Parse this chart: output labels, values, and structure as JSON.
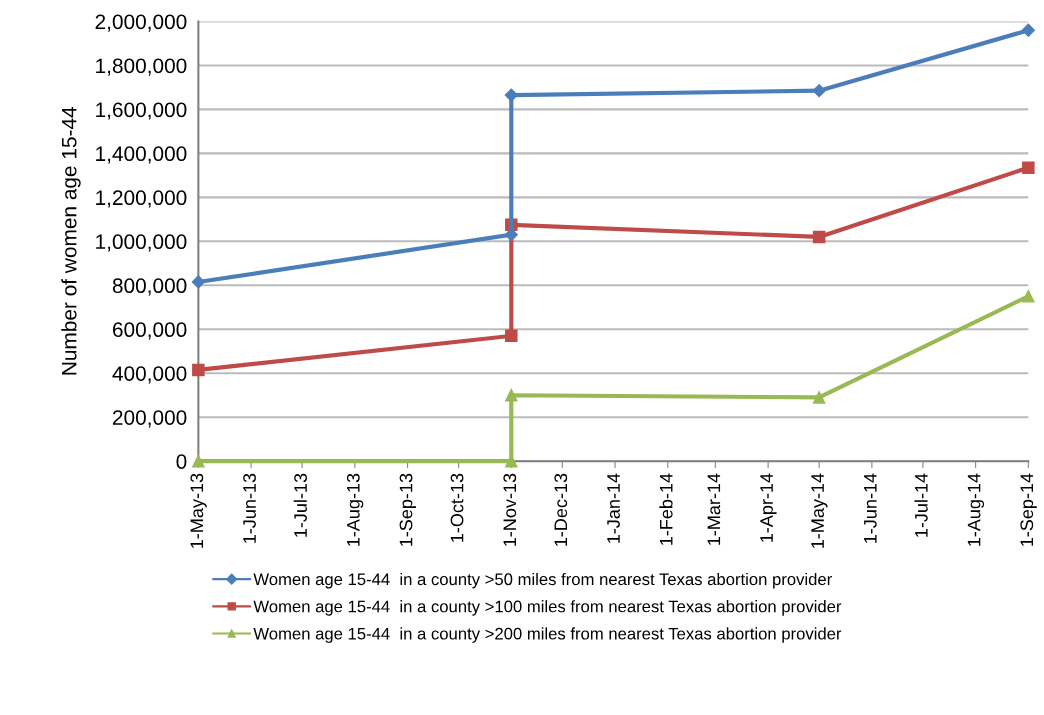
{
  "chart_data": {
    "type": "line",
    "ylabel": "Number of women age 15-44",
    "x": [
      "2013-05-01",
      "2013-11-01",
      "2013-11-01",
      "2014-05-01",
      "2014-09-01"
    ],
    "series": [
      {
        "name": "Women age 15-44  in a county >50 miles from nearest Texas abortion provider",
        "color": "#4a7ebb",
        "marker": "diamond",
        "values": [
          815000,
          1030000,
          1665000,
          1685000,
          1960000
        ]
      },
      {
        "name": "Women age 15-44  in a county >100 miles from nearest Texas abortion provider",
        "color": "#be4b48",
        "marker": "square",
        "values": [
          415000,
          570000,
          1075000,
          1020000,
          1335000
        ]
      },
      {
        "name": "Women age 15-44  in a county >200 miles from nearest Texas abortion provider",
        "color": "#98b954",
        "marker": "triangle",
        "values": [
          0,
          0,
          300000,
          290000,
          750000
        ]
      }
    ],
    "xlim": [
      "2013-05-01",
      "2014-09-01"
    ],
    "xticks": [
      {
        "value": "2013-05-01",
        "label": "1-May-13"
      },
      {
        "value": "2013-06-01",
        "label": "1-Jun-13"
      },
      {
        "value": "2013-07-01",
        "label": "1-Jul-13"
      },
      {
        "value": "2013-08-01",
        "label": "1-Aug-13"
      },
      {
        "value": "2013-09-01",
        "label": "1-Sep-13"
      },
      {
        "value": "2013-10-01",
        "label": "1-Oct-13"
      },
      {
        "value": "2013-11-01",
        "label": "1-Nov-13"
      },
      {
        "value": "2013-12-01",
        "label": "1-Dec-13"
      },
      {
        "value": "2014-01-01",
        "label": "1-Jan-14"
      },
      {
        "value": "2014-02-01",
        "label": "1-Feb-14"
      },
      {
        "value": "2014-03-01",
        "label": "1-Mar-14"
      },
      {
        "value": "2014-04-01",
        "label": "1-Apr-14"
      },
      {
        "value": "2014-05-01",
        "label": "1-May-14"
      },
      {
        "value": "2014-06-01",
        "label": "1-Jun-14"
      },
      {
        "value": "2014-07-01",
        "label": "1-Jul-14"
      },
      {
        "value": "2014-08-01",
        "label": "1-Aug-14"
      },
      {
        "value": "2014-09-01",
        "label": "1-Sep-14"
      }
    ],
    "ylim": [
      0,
      2000000
    ],
    "yticks": [
      {
        "value": 0,
        "label": "0"
      },
      {
        "value": 200000,
        "label": "200,000"
      },
      {
        "value": 400000,
        "label": "400,000"
      },
      {
        "value": 600000,
        "label": "600,000"
      },
      {
        "value": 800000,
        "label": "800,000"
      },
      {
        "value": 1000000,
        "label": "1,000,000"
      },
      {
        "value": 1200000,
        "label": "1,200,000"
      },
      {
        "value": 1400000,
        "label": "1,400,000"
      },
      {
        "value": 1600000,
        "label": "1,600,000"
      },
      {
        "value": 1800000,
        "label": "1,800,000"
      },
      {
        "value": 2000000,
        "label": "2,000,000"
      }
    ],
    "grid": "y",
    "legend": "bottom",
    "line_style": "solid"
  }
}
